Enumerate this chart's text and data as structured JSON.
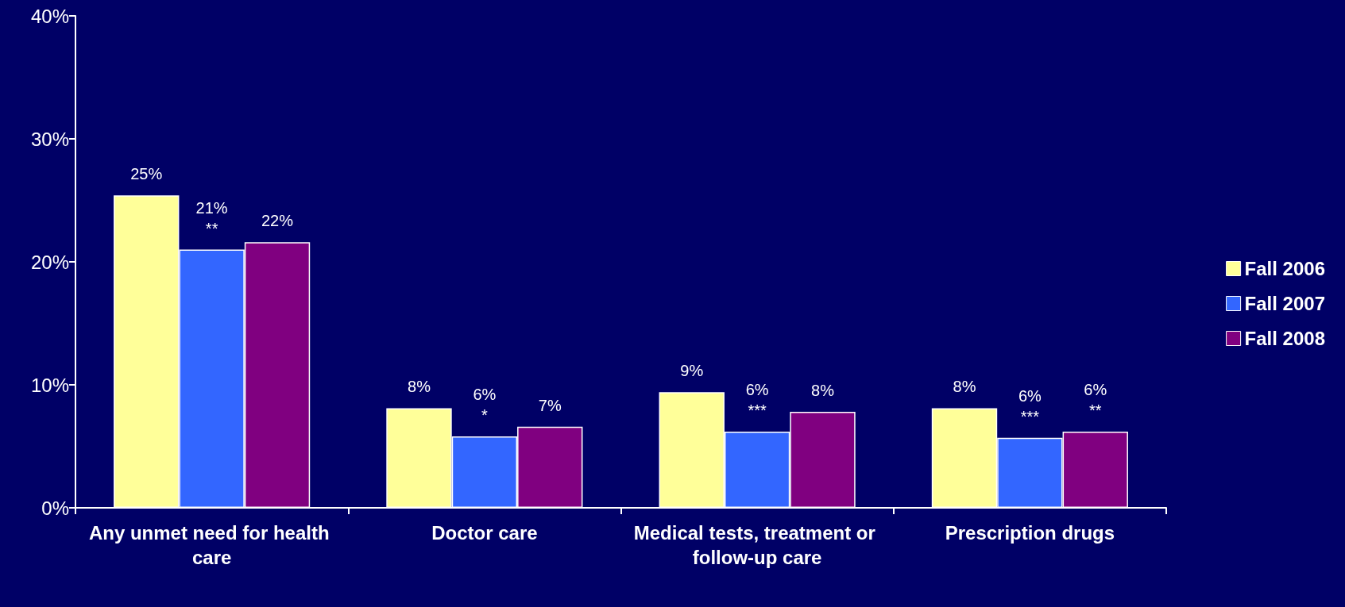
{
  "chart_data": {
    "type": "bar",
    "categories": [
      "Any unmet need for health care",
      "Doctor care",
      "Medical tests, treatment or follow-up care",
      "Prescription drugs"
    ],
    "series": [
      {
        "name": "Fall 2006",
        "color": "#ffff99",
        "values": [
          25.4,
          8.1,
          9.4,
          8.1
        ],
        "value_labels": [
          "25%",
          "8%",
          "9%",
          "8%"
        ]
      },
      {
        "name": "Fall 2007",
        "color": "#3366ff",
        "values": [
          21.0,
          5.8,
          6.2,
          5.7
        ],
        "value_labels": [
          "21%\n**",
          "6%\n*",
          "6%\n***",
          "6%\n***"
        ]
      },
      {
        "name": "Fall 2008",
        "color": "#800080",
        "values": [
          21.6,
          6.6,
          7.8,
          6.2
        ],
        "value_labels": [
          "22%",
          "7%",
          "8%",
          "6%\n**"
        ]
      }
    ],
    "ylim": [
      0,
      40
    ],
    "yticks": [
      {
        "value": 0,
        "label": "0%"
      },
      {
        "value": 10,
        "label": "10%"
      },
      {
        "value": 20,
        "label": "20%"
      },
      {
        "value": 30,
        "label": "30%"
      },
      {
        "value": 40,
        "label": "40%"
      }
    ],
    "grid": false,
    "legend": "right"
  }
}
